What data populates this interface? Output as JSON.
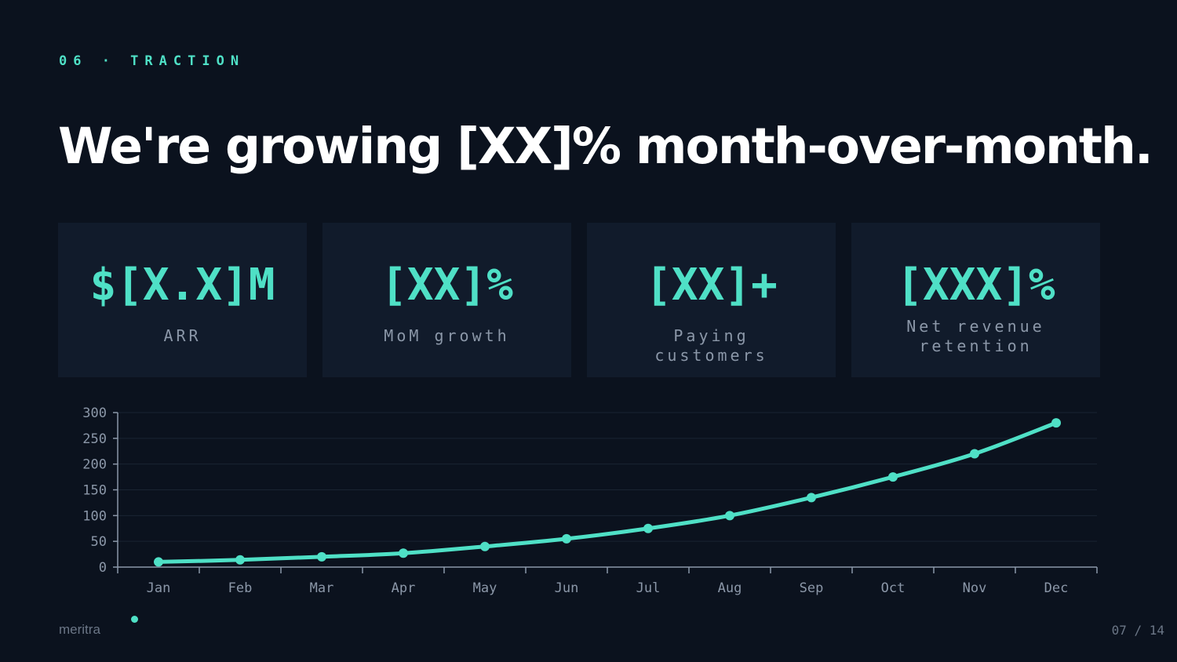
{
  "slide": {
    "eyebrow": "06 · TRACTION",
    "title": "We're growing [XX]% month-over-month.",
    "brand": "meritra",
    "page": "07 / 14"
  },
  "stats": [
    {
      "value": "$[X.X]M",
      "label": "ARR"
    },
    {
      "value": "[XX]%",
      "label": "MoM growth"
    },
    {
      "value": "[XX]+",
      "label": "Paying customers"
    },
    {
      "value": "[XXX]%",
      "label": "Net revenue retention"
    }
  ],
  "colors": {
    "accent": "#4fe0c6",
    "background": "#0b121e",
    "card": "#111b2b"
  },
  "chart_data": {
    "type": "line",
    "title": "",
    "xlabel": "",
    "ylabel": "",
    "categories": [
      "Jan",
      "Feb",
      "Mar",
      "Apr",
      "May",
      "Jun",
      "Jul",
      "Aug",
      "Sep",
      "Oct",
      "Nov",
      "Dec"
    ],
    "series": [
      {
        "values": [
          10,
          14,
          20,
          27,
          40,
          55,
          75,
          100,
          135,
          175,
          220,
          280
        ]
      }
    ],
    "ylim": [
      0,
      300
    ],
    "yticks": [
      0,
      50,
      100,
      150,
      200,
      250,
      300
    ],
    "grid": true,
    "legend": "none"
  }
}
